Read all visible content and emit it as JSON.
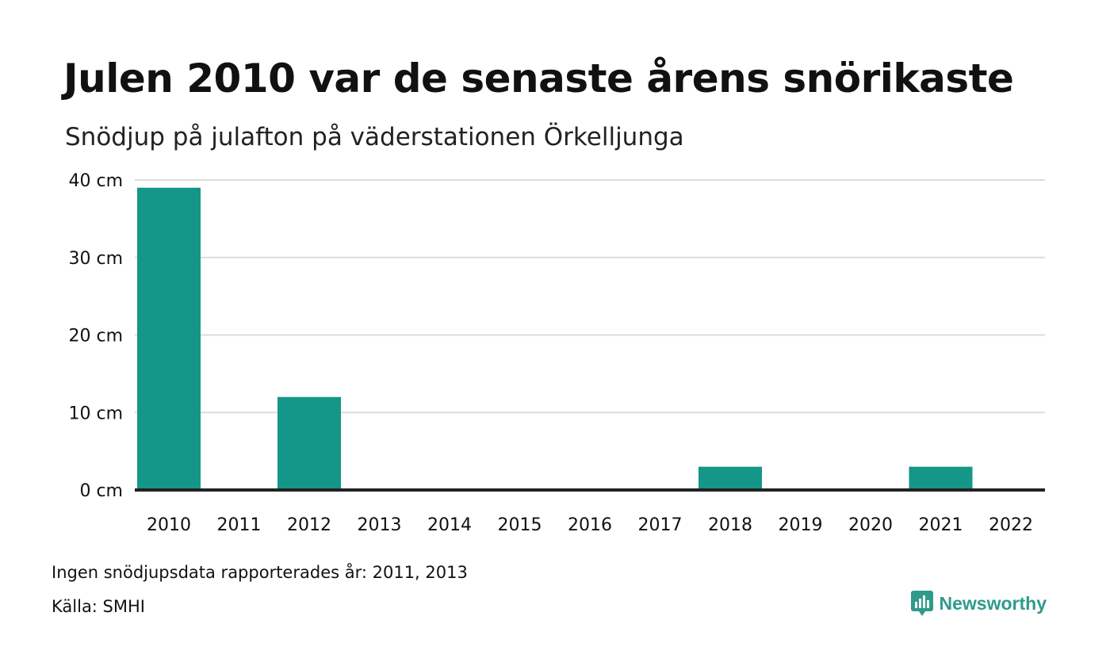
{
  "title": "Julen 2010 var de senaste årens snörikaste",
  "subtitle": "Snödjup på julafton på väderstationen Örkelljunga",
  "note": "Ingen snödjupsdata rapporterades år: 2011, 2013",
  "source": "Källa: SMHI",
  "brand": {
    "name": "Newsworthy",
    "icon": "newsworthy-logo-icon",
    "color": "#2e9a8c"
  },
  "colors": {
    "bar": "#149688",
    "grid": "#dcdcdc",
    "baseline": "#222222",
    "text": "#111111"
  },
  "chart_data": {
    "type": "bar",
    "categories": [
      "2010",
      "2011",
      "2012",
      "2013",
      "2014",
      "2015",
      "2016",
      "2017",
      "2018",
      "2019",
      "2020",
      "2021",
      "2022"
    ],
    "series": [
      {
        "values": [
          39,
          null,
          12,
          null,
          0,
          0,
          0,
          0,
          3,
          0,
          0,
          3,
          0
        ]
      }
    ],
    "ylabel": "",
    "xlabel": "",
    "unit": "cm",
    "ylim": [
      0,
      40
    ],
    "yticks": [
      0,
      10,
      20,
      30,
      40
    ],
    "ytick_labels": [
      "0 cm",
      "10 cm",
      "20 cm",
      "30 cm",
      "40 cm"
    ],
    "grid": true,
    "legend": "none"
  }
}
